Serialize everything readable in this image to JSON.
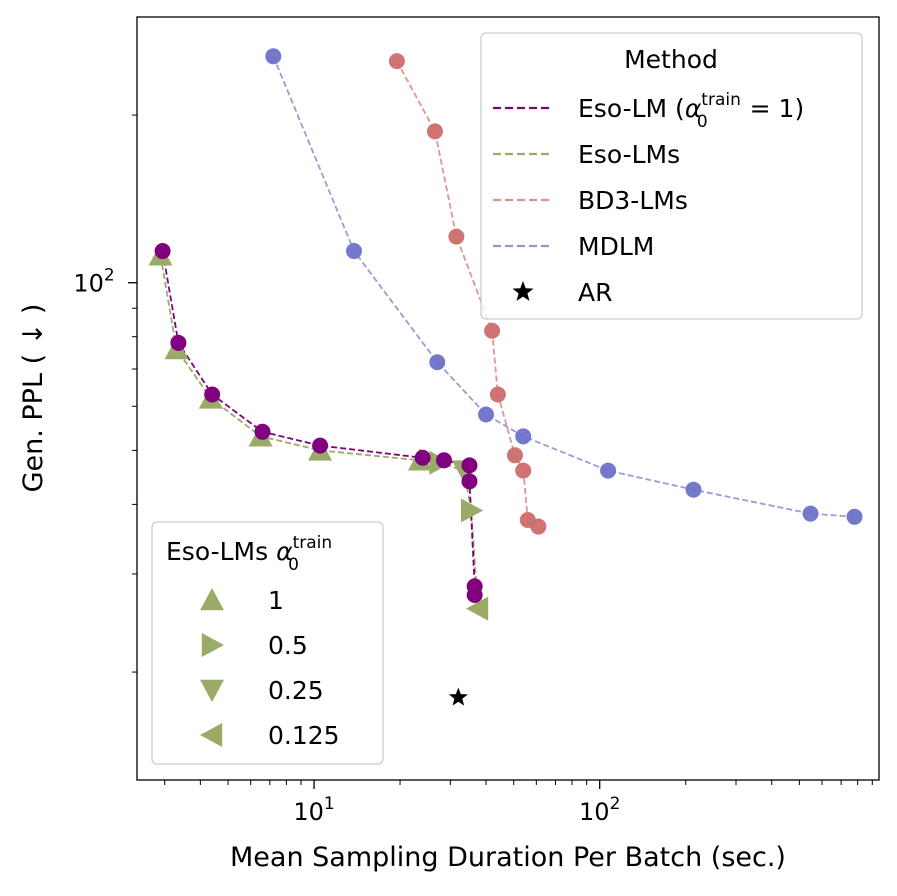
{
  "chart_data": {
    "type": "scatter",
    "xlabel": "Mean Sampling Duration Per Batch (sec.)",
    "ylabel": "Gen. PPL ( ↓ )",
    "xscale": "log",
    "yscale": "log",
    "xlim": [
      2.4,
      950
    ],
    "ylim": [
      12.8,
      300
    ],
    "xticks": [
      {
        "value": 10,
        "base": "10",
        "exp": "1"
      },
      {
        "value": 100,
        "base": "10",
        "exp": "2"
      }
    ],
    "yticks": [
      {
        "value": 100,
        "base": "10",
        "exp": "2"
      }
    ],
    "grid": false,
    "series": [
      {
        "name": "Eso-LM (α₀ᵗʳᵃⁱⁿ = 1)",
        "color": "#800080",
        "linestyle": "dashed",
        "marker": "circle",
        "points": [
          [
            2.95,
            114
          ],
          [
            3.35,
            78
          ],
          [
            4.4,
            63
          ],
          [
            6.6,
            54
          ],
          [
            10.5,
            51
          ],
          [
            24,
            48.5
          ],
          [
            28.5,
            48
          ],
          [
            35,
            47
          ],
          [
            35,
            44
          ],
          [
            36.5,
            28.5
          ],
          [
            36.5,
            27.5
          ]
        ]
      },
      {
        "name": "Eso-LMs",
        "color": "#9aab67",
        "linestyle": "dashed",
        "marker": "mixed",
        "points": [
          {
            "x": 2.9,
            "y": 112,
            "marker": "triangle-up",
            "alpha0": "1"
          },
          {
            "x": 3.3,
            "y": 76,
            "marker": "triangle-up",
            "alpha0": "1"
          },
          {
            "x": 4.35,
            "y": 62,
            "marker": "triangle-up",
            "alpha0": "1"
          },
          {
            "x": 6.5,
            "y": 53,
            "marker": "triangle-up",
            "alpha0": "1"
          },
          {
            "x": 10.5,
            "y": 50,
            "marker": "triangle-up",
            "alpha0": "1"
          },
          {
            "x": 23.5,
            "y": 48,
            "marker": "triangle-up",
            "alpha0": "1"
          },
          {
            "x": 27.5,
            "y": 47.5,
            "marker": "triangle-right",
            "alpha0": "0.5"
          },
          {
            "x": 33.5,
            "y": 46,
            "marker": "triangle-down",
            "alpha0": "0.25"
          },
          {
            "x": 35.5,
            "y": 39,
            "marker": "triangle-right",
            "alpha0": "0.5"
          },
          {
            "x": 37.5,
            "y": 26,
            "marker": "triangle-left",
            "alpha0": "0.125"
          }
        ]
      },
      {
        "name": "BD3-LMs",
        "color": "#cd6b6b",
        "linestyle": "dashed",
        "marker": "circle",
        "points": [
          [
            19.5,
            250
          ],
          [
            26.5,
            187
          ],
          [
            31.5,
            121
          ],
          [
            42,
            82
          ],
          [
            44,
            63
          ],
          [
            50.5,
            49
          ],
          [
            54,
            46
          ],
          [
            56,
            37.5
          ],
          [
            61,
            36.5
          ]
        ]
      },
      {
        "name": "MDLM",
        "color": "#6d72c8",
        "linestyle": "dashed",
        "marker": "circle",
        "points": [
          [
            7.2,
            255
          ],
          [
            13.8,
            114
          ],
          [
            27,
            72
          ],
          [
            40,
            58
          ],
          [
            54,
            53
          ],
          [
            107,
            46
          ],
          [
            213,
            42.5
          ],
          [
            547,
            38.5
          ],
          [
            780,
            38
          ]
        ]
      },
      {
        "name": "AR",
        "color": "#000000",
        "marker": "star",
        "points": [
          [
            32,
            18
          ]
        ]
      }
    ],
    "legend_method": {
      "title": "Method",
      "placement": "top-right",
      "entries": [
        {
          "label_prefix": "Eso-LM (",
          "alpha": "α",
          "sub": "0",
          "sup": "train",
          "label_suffix": " = 1)",
          "color": "#800080",
          "kind": "line"
        },
        {
          "label": "Eso-LMs",
          "color": "#9aab67",
          "kind": "line"
        },
        {
          "label": "BD3-LMs",
          "color": "#cd6b6b",
          "kind": "line"
        },
        {
          "label": "MDLM",
          "color": "#6d72c8",
          "kind": "line"
        },
        {
          "label": "AR",
          "color": "#000000",
          "kind": "star"
        }
      ]
    },
    "legend_alpha": {
      "title_prefix": "Eso-LMs ",
      "alpha": "α",
      "sub": "0",
      "sup": "train",
      "placement": "bottom-left",
      "entries": [
        {
          "label": "1",
          "marker": "triangle-up",
          "color": "#9aab67"
        },
        {
          "label": "0.5",
          "marker": "triangle-right",
          "color": "#9aab67"
        },
        {
          "label": "0.25",
          "marker": "triangle-down",
          "color": "#9aab67"
        },
        {
          "label": "0.125",
          "marker": "triangle-left",
          "color": "#9aab67"
        }
      ]
    }
  }
}
